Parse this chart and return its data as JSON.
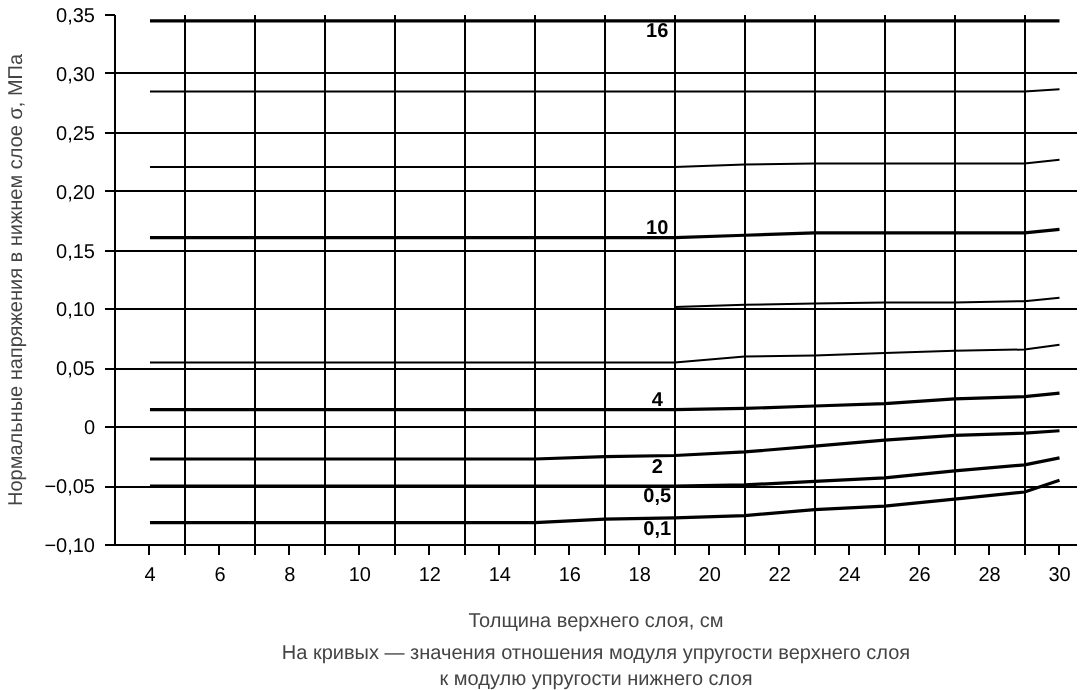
{
  "chart_data": {
    "type": "line",
    "xlabel": "Толщина верхнего слоя, см",
    "ylabel": "Нормальные напряжения в нижнем слое σ, МПа",
    "annotations": [
      "На кривых — значения отношения модуля упругости верхнего слоя\nк модулю упругости нижнего слоя"
    ],
    "x": [
      4,
      15,
      17,
      19,
      21,
      23,
      25,
      27,
      29,
      30
    ],
    "series": [
      {
        "name": "16",
        "color": "#000000",
        "values": [
          0.345,
          0.345,
          0.345,
          0.345,
          0.345,
          0.345,
          0.345,
          0.345,
          0.345,
          0.345
        ]
      },
      {
        "color": "#000000",
        "values": [
          0.285,
          0.285,
          0.285,
          0.285,
          0.285,
          0.285,
          0.285,
          0.285,
          0.285,
          0.287
        ]
      },
      {
        "color": "#000000",
        "values": [
          0.221,
          0.221,
          0.221,
          0.221,
          0.223,
          0.224,
          0.224,
          0.224,
          0.224,
          0.227
        ]
      },
      {
        "name": "10",
        "color": "#000000",
        "values": [
          0.161,
          0.161,
          0.161,
          0.161,
          0.163,
          0.165,
          0.165,
          0.165,
          0.165,
          0.168
        ]
      },
      {
        "color": "#000000",
        "values": [
          null,
          null,
          null,
          0.102,
          0.104,
          0.105,
          0.106,
          0.106,
          0.107,
          0.11
        ]
      },
      {
        "color": "#000000",
        "values": [
          0.055,
          0.055,
          0.055,
          0.055,
          0.06,
          0.061,
          0.063,
          0.065,
          0.066,
          0.07
        ]
      },
      {
        "name": "4",
        "color": "#000000",
        "values": [
          0.015,
          0.015,
          0.015,
          0.015,
          0.016,
          0.018,
          0.02,
          0.024,
          0.026,
          0.029
        ]
      },
      {
        "name": "2",
        "color": "#000000",
        "values": [
          -0.027,
          -0.027,
          -0.025,
          -0.024,
          -0.021,
          -0.016,
          -0.011,
          -0.007,
          -0.005,
          -0.003
        ]
      },
      {
        "name": "0,5",
        "color": "#000000",
        "values": [
          -0.05,
          -0.05,
          -0.05,
          -0.05,
          -0.049,
          -0.046,
          -0.043,
          -0.037,
          -0.032,
          -0.026
        ]
      },
      {
        "name": "0,1",
        "color": "#000000",
        "values": [
          -0.081,
          -0.081,
          -0.078,
          -0.077,
          -0.075,
          -0.07,
          -0.067,
          -0.061,
          -0.055,
          -0.045
        ]
      }
    ],
    "xlim": [
      3,
      30.5
    ],
    "xticks": [
      {
        "value": 4,
        "label": "4"
      },
      {
        "value": 5,
        "label": null
      },
      {
        "value": 6,
        "label": "6"
      },
      {
        "value": 7,
        "label": null
      },
      {
        "value": 8,
        "label": "8"
      },
      {
        "value": 9,
        "label": null
      },
      {
        "value": 10,
        "label": "10"
      },
      {
        "value": 11,
        "label": null
      },
      {
        "value": 12,
        "label": "12"
      },
      {
        "value": 13,
        "label": null
      },
      {
        "value": 14,
        "label": "14"
      },
      {
        "value": 15,
        "label": null
      },
      {
        "value": 16,
        "label": "16"
      },
      {
        "value": 17,
        "label": null
      },
      {
        "value": 18,
        "label": "18"
      },
      {
        "value": 19,
        "label": null
      },
      {
        "value": 20,
        "label": "20"
      },
      {
        "value": 21,
        "label": null
      },
      {
        "value": 22,
        "label": "22"
      },
      {
        "value": 23,
        "label": null
      },
      {
        "value": 24,
        "label": "24"
      },
      {
        "value": 25,
        "label": null
      },
      {
        "value": 26,
        "label": "26"
      },
      {
        "value": 27,
        "label": null
      },
      {
        "value": 28,
        "label": "28"
      },
      {
        "value": 29,
        "label": null
      },
      {
        "value": 30,
        "label": "30"
      }
    ],
    "ylim": [
      -0.1,
      0.35
    ],
    "yticks": [
      {
        "value": -0.1,
        "label": "−0,10"
      },
      {
        "value": -0.05,
        "label": "−0,05"
      },
      0,
      {
        "value": 0.05,
        "label": "0,05"
      },
      {
        "value": 0.1,
        "label": "0,10"
      },
      {
        "value": 0.15,
        "label": "0,15"
      },
      {
        "value": 0.2,
        "label": "0,20"
      },
      {
        "value": 0.25,
        "label": "0,25"
      },
      {
        "value": 0.3,
        "label": "0,30"
      },
      {
        "value": 0.35,
        "label": "0,35"
      }
    ],
    "grid": true,
    "marker": "none",
    "line_style": "solid"
  }
}
